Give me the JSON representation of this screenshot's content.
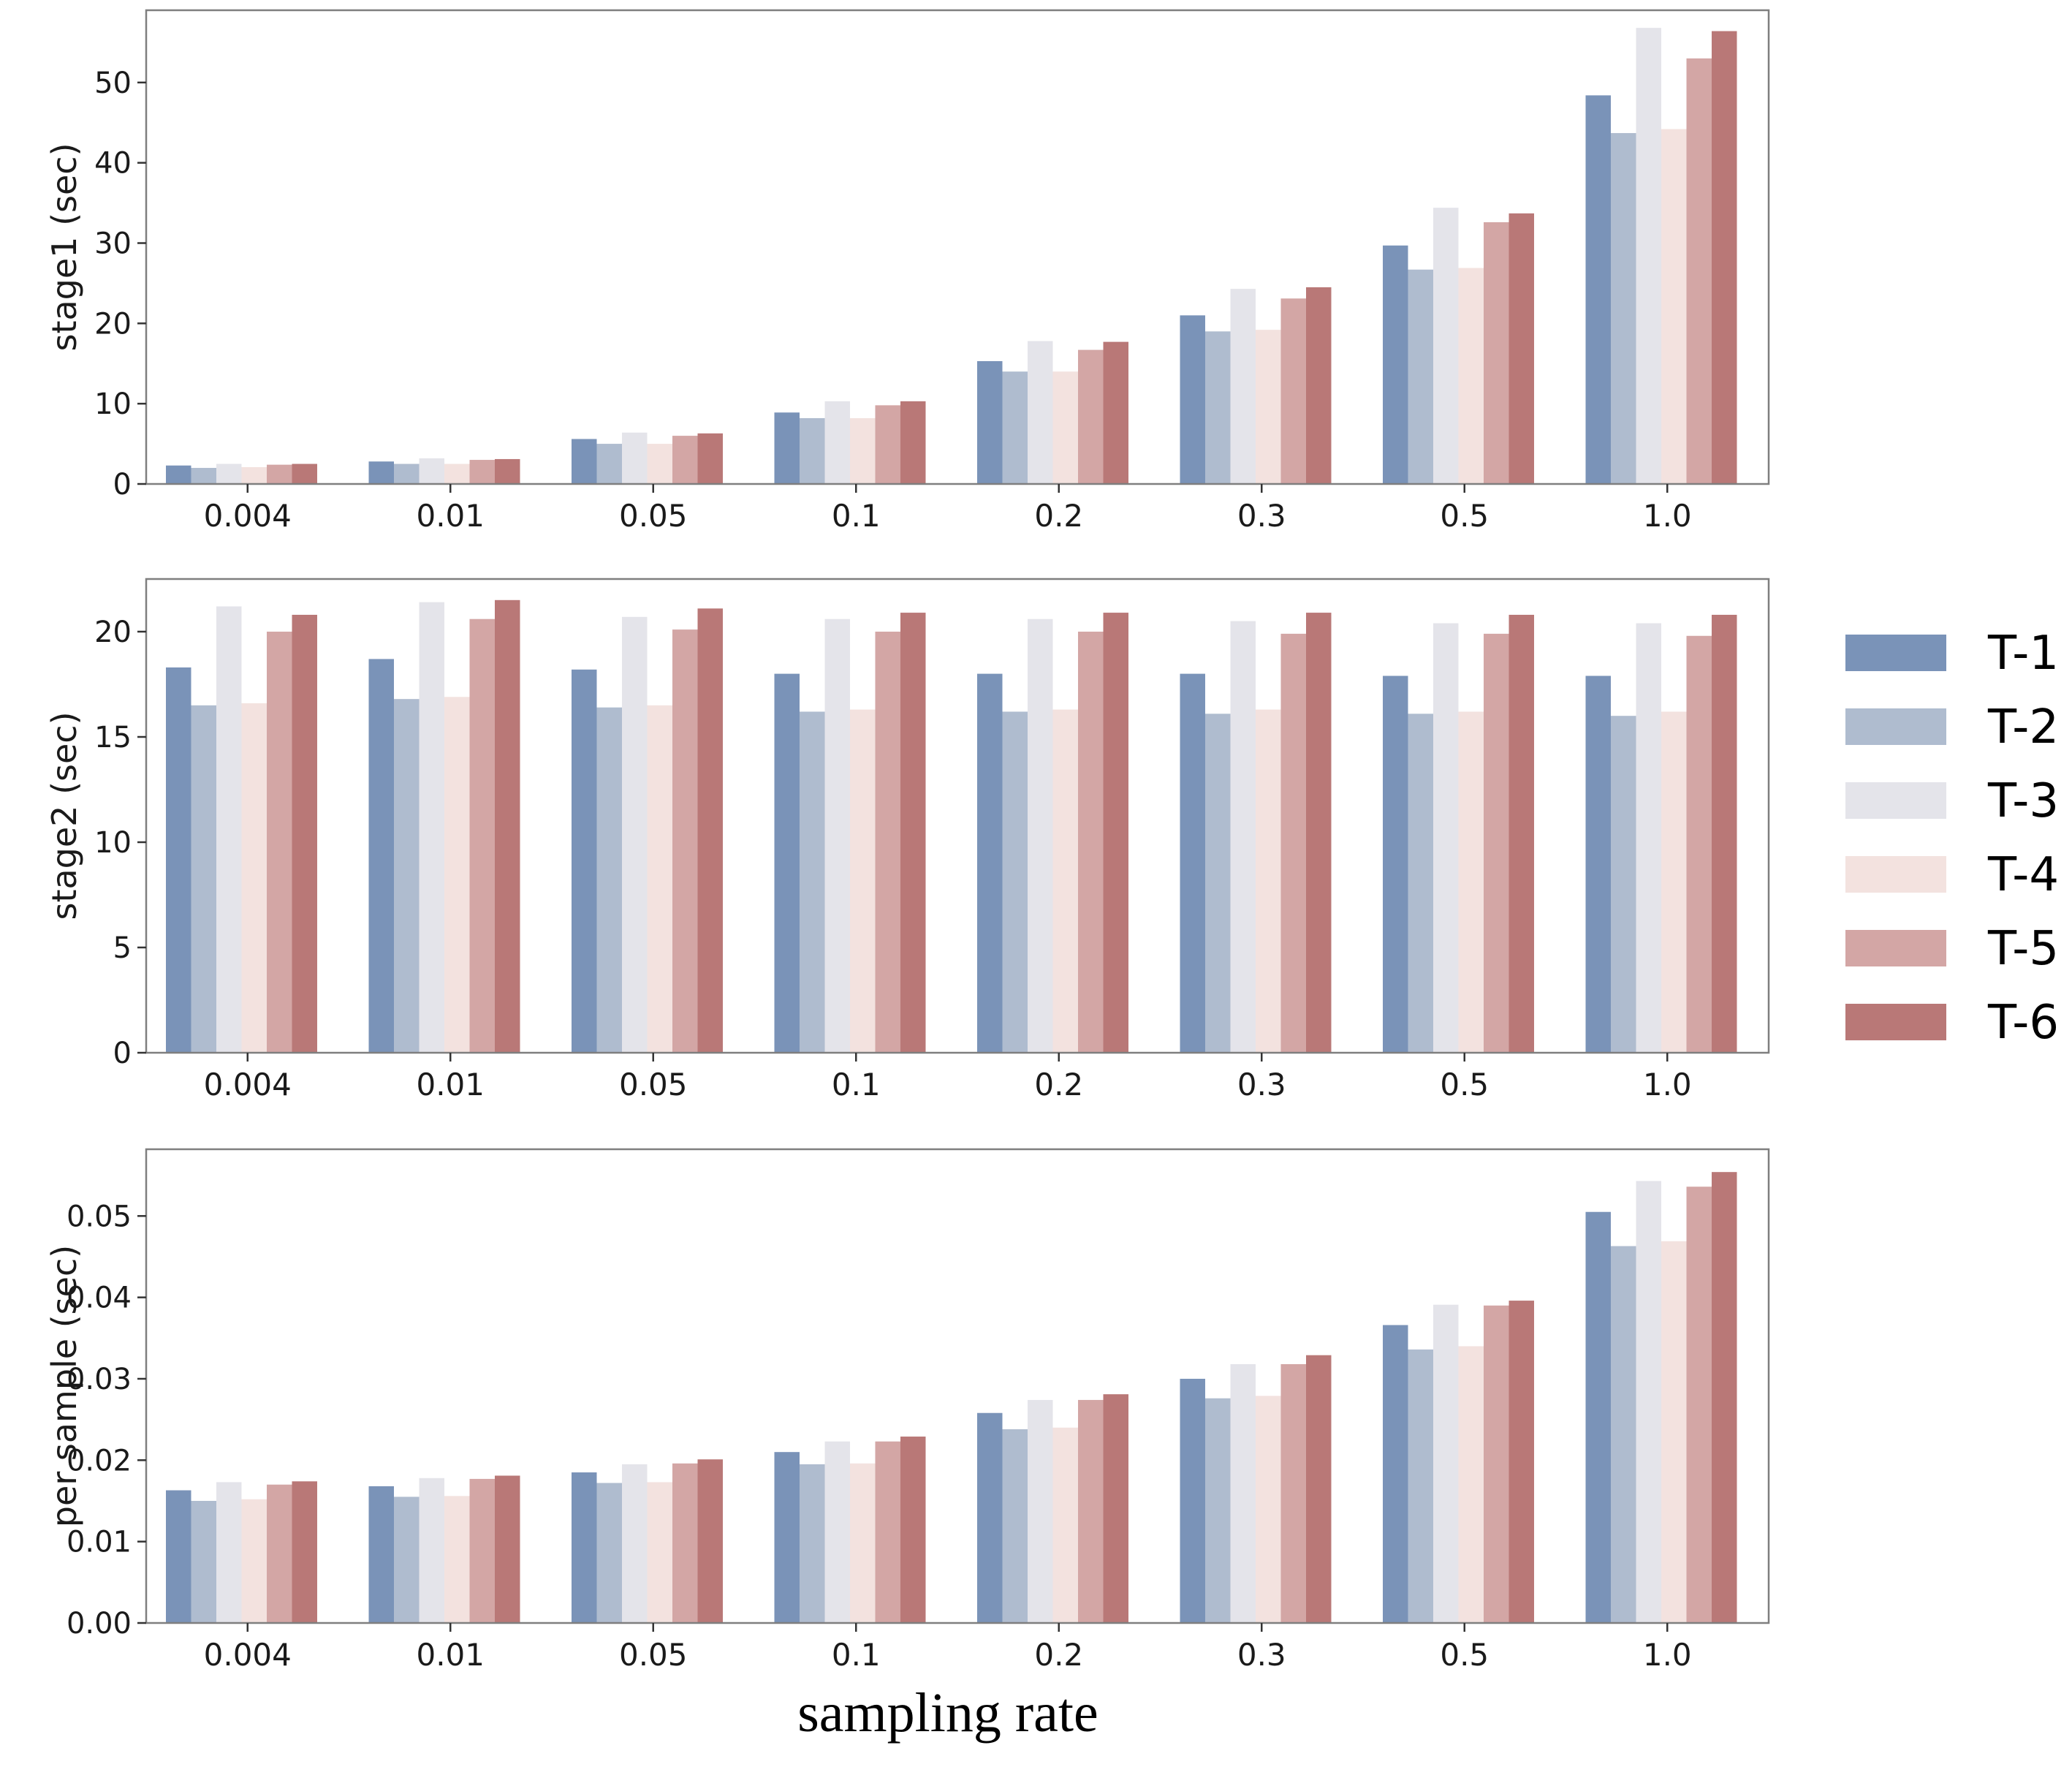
{
  "figure": {
    "xlabel": "sampling rate",
    "legend_position": "right",
    "colors": [
      "#7a93b8",
      "#afbccf",
      "#e4e4ea",
      "#f3e2df",
      "#d3a6a5",
      "#b97877"
    ]
  },
  "chart_data": [
    {
      "type": "bar",
      "ylabel": "stage1 (sec)",
      "ylim": [
        0,
        59
      ],
      "yticks": [
        "0",
        "10",
        "20",
        "30",
        "40",
        "50"
      ],
      "ytick_values": [
        0,
        10,
        20,
        30,
        40,
        50
      ],
      "categories": [
        "0.004",
        "0.01",
        "0.05",
        "0.1",
        "0.2",
        "0.3",
        "0.5",
        "1.0"
      ],
      "series": [
        {
          "name": "T-1",
          "values": [
            2.3,
            2.8,
            5.6,
            8.9,
            15.3,
            21.0,
            29.7,
            48.4
          ]
        },
        {
          "name": "T-2",
          "values": [
            2.0,
            2.5,
            5.0,
            8.2,
            14.0,
            19.0,
            26.7,
            43.7
          ]
        },
        {
          "name": "T-3",
          "values": [
            2.5,
            3.2,
            6.4,
            10.3,
            17.8,
            24.3,
            34.4,
            56.8
          ]
        },
        {
          "name": "T-4",
          "values": [
            2.1,
            2.5,
            5.0,
            8.2,
            14.0,
            19.2,
            26.9,
            44.2
          ]
        },
        {
          "name": "T-5",
          "values": [
            2.4,
            3.0,
            6.0,
            9.8,
            16.7,
            23.1,
            32.6,
            53.0
          ]
        },
        {
          "name": "T-6",
          "values": [
            2.5,
            3.1,
            6.3,
            10.3,
            17.7,
            24.5,
            33.7,
            56.4
          ]
        }
      ]
    },
    {
      "type": "bar",
      "ylabel": "stage2 (sec)",
      "ylim": [
        0,
        22.5
      ],
      "yticks": [
        "0",
        "5",
        "10",
        "15",
        "20"
      ],
      "ytick_values": [
        0,
        5,
        10,
        15,
        20
      ],
      "categories": [
        "0.004",
        "0.01",
        "0.05",
        "0.1",
        "0.2",
        "0.3",
        "0.5",
        "1.0"
      ],
      "series": [
        {
          "name": "T-1",
          "values": [
            18.3,
            18.7,
            18.2,
            18.0,
            18.0,
            18.0,
            17.9,
            17.9
          ]
        },
        {
          "name": "T-2",
          "values": [
            16.5,
            16.8,
            16.4,
            16.2,
            16.2,
            16.1,
            16.1,
            16.0
          ]
        },
        {
          "name": "T-3",
          "values": [
            21.2,
            21.4,
            20.7,
            20.6,
            20.6,
            20.5,
            20.4,
            20.4
          ]
        },
        {
          "name": "T-4",
          "values": [
            16.6,
            16.9,
            16.5,
            16.3,
            16.3,
            16.3,
            16.2,
            16.2
          ]
        },
        {
          "name": "T-5",
          "values": [
            20.0,
            20.6,
            20.1,
            20.0,
            20.0,
            19.9,
            19.9,
            19.8
          ]
        },
        {
          "name": "T-6",
          "values": [
            20.8,
            21.5,
            21.1,
            20.9,
            20.9,
            20.9,
            20.8,
            20.8
          ]
        }
      ]
    },
    {
      "type": "bar",
      "ylabel": "per sample (sec)",
      "ylim": [
        0,
        0.0582
      ],
      "yticks": [
        "0.00",
        "0.01",
        "0.02",
        "0.03",
        "0.04",
        "0.05"
      ],
      "ytick_values": [
        0,
        0.01,
        0.02,
        0.03,
        0.04,
        0.05
      ],
      "categories": [
        "0.004",
        "0.01",
        "0.05",
        "0.1",
        "0.2",
        "0.3",
        "0.5",
        "1.0"
      ],
      "series": [
        {
          "name": "T-1",
          "values": [
            0.0163,
            0.0168,
            0.0185,
            0.021,
            0.0258,
            0.03,
            0.0366,
            0.0505
          ]
        },
        {
          "name": "T-2",
          "values": [
            0.015,
            0.0155,
            0.0172,
            0.0195,
            0.0238,
            0.0276,
            0.0336,
            0.0463
          ]
        },
        {
          "name": "T-3",
          "values": [
            0.0173,
            0.0178,
            0.0195,
            0.0223,
            0.0274,
            0.0318,
            0.0391,
            0.0543
          ]
        },
        {
          "name": "T-4",
          "values": [
            0.0152,
            0.0156,
            0.0173,
            0.0196,
            0.024,
            0.0279,
            0.034,
            0.0469
          ]
        },
        {
          "name": "T-5",
          "values": [
            0.017,
            0.0177,
            0.0196,
            0.0223,
            0.0274,
            0.0318,
            0.039,
            0.0536
          ]
        },
        {
          "name": "T-6",
          "values": [
            0.0174,
            0.0181,
            0.0201,
            0.0229,
            0.0281,
            0.0329,
            0.0396,
            0.0554
          ]
        }
      ]
    }
  ]
}
